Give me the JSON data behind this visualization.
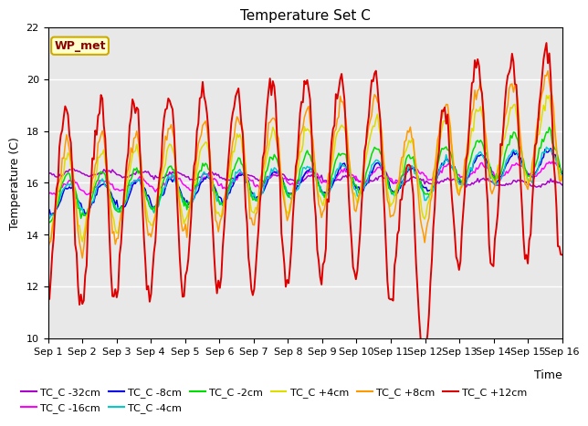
{
  "title": "Temperature Set C",
  "xlabel": "Time",
  "ylabel": "Temperature (C)",
  "ylim": [
    10,
    22
  ],
  "yticks": [
    10,
    12,
    14,
    16,
    18,
    20,
    22
  ],
  "xtick_labels": [
    "Sep 1",
    "Sep 2",
    "Sep 3",
    "Sep 4",
    "Sep 5",
    "Sep 6",
    "Sep 7",
    "Sep 8",
    "Sep 9",
    "Sep 10",
    "Sep 11",
    "Sep 12",
    "Sep 13",
    "Sep 14",
    "Sep 15",
    "Sep 16"
  ],
  "wp_met_label": "WP_met",
  "bg_color": "#e8e8e8",
  "series": [
    {
      "label": "TC_C -32cm",
      "color": "#aa00cc"
    },
    {
      "label": "TC_C -16cm",
      "color": "#ff00ff"
    },
    {
      "label": "TC_C -8cm",
      "color": "#0000ee"
    },
    {
      "label": "TC_C -4cm",
      "color": "#00cccc"
    },
    {
      "label": "TC_C -2cm",
      "color": "#00dd00"
    },
    {
      "label": "TC_C +4cm",
      "color": "#dddd00"
    },
    {
      "label": "TC_C +8cm",
      "color": "#ff9900"
    },
    {
      "label": "TC_C +12cm",
      "color": "#dd0000"
    }
  ],
  "legend_box_facecolor": "#ffffcc",
  "legend_box_edgecolor": "#ccaa00",
  "legend_ncol": 6,
  "legend_rows": 2
}
